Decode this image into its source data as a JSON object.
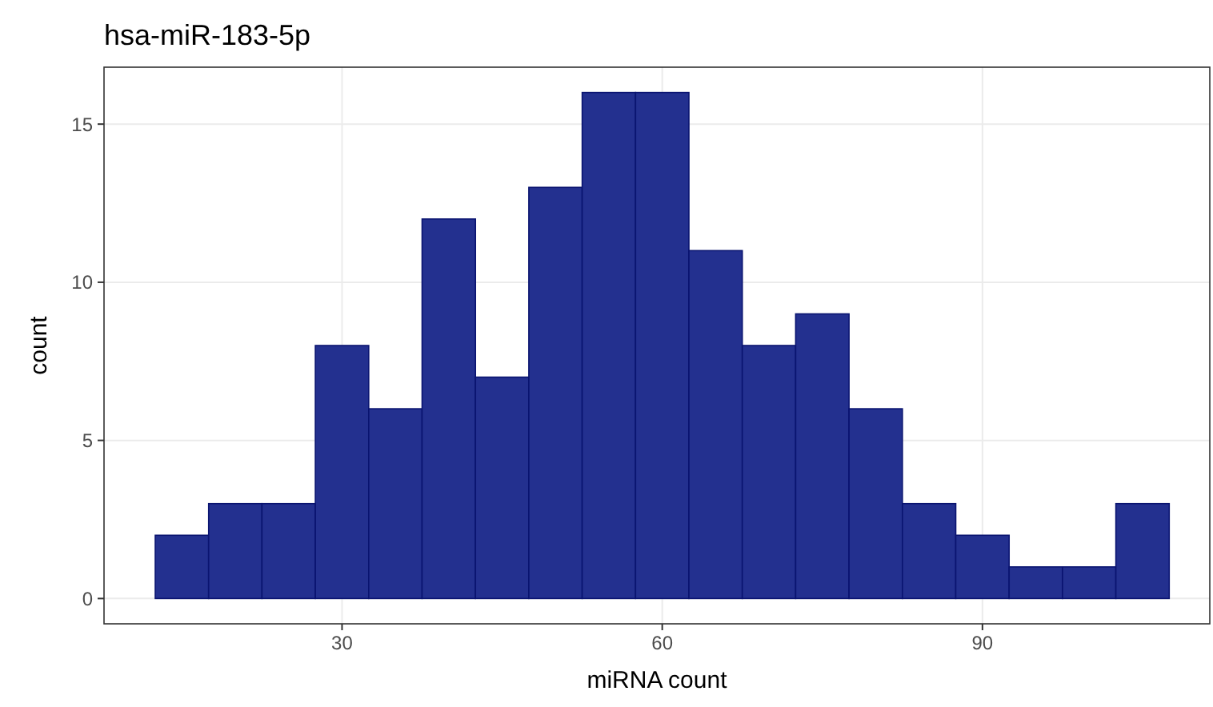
{
  "chart_data": {
    "type": "histogram",
    "title": "hsa-miR-183-5p",
    "xlabel": "miRNA count",
    "ylabel": "count",
    "bins": [
      12.5,
      17.5,
      22.5,
      27.5,
      32.5,
      37.5,
      42.5,
      47.5,
      52.5,
      57.5,
      62.5,
      67.5,
      72.5,
      77.5,
      82.5,
      87.5,
      92.5,
      97.5,
      102.5,
      107.5
    ],
    "values": [
      2,
      3,
      3,
      8,
      6,
      12,
      7,
      13,
      16,
      16,
      11,
      8,
      9,
      6,
      3,
      2,
      1,
      1,
      3
    ],
    "color": "#23308f",
    "xlim": [
      7.7,
      111.3
    ],
    "xticks": [
      30,
      60,
      90
    ],
    "ylim": [
      -0.8,
      16.8
    ],
    "yticks": [
      0,
      5,
      10,
      15
    ],
    "grid": true
  }
}
